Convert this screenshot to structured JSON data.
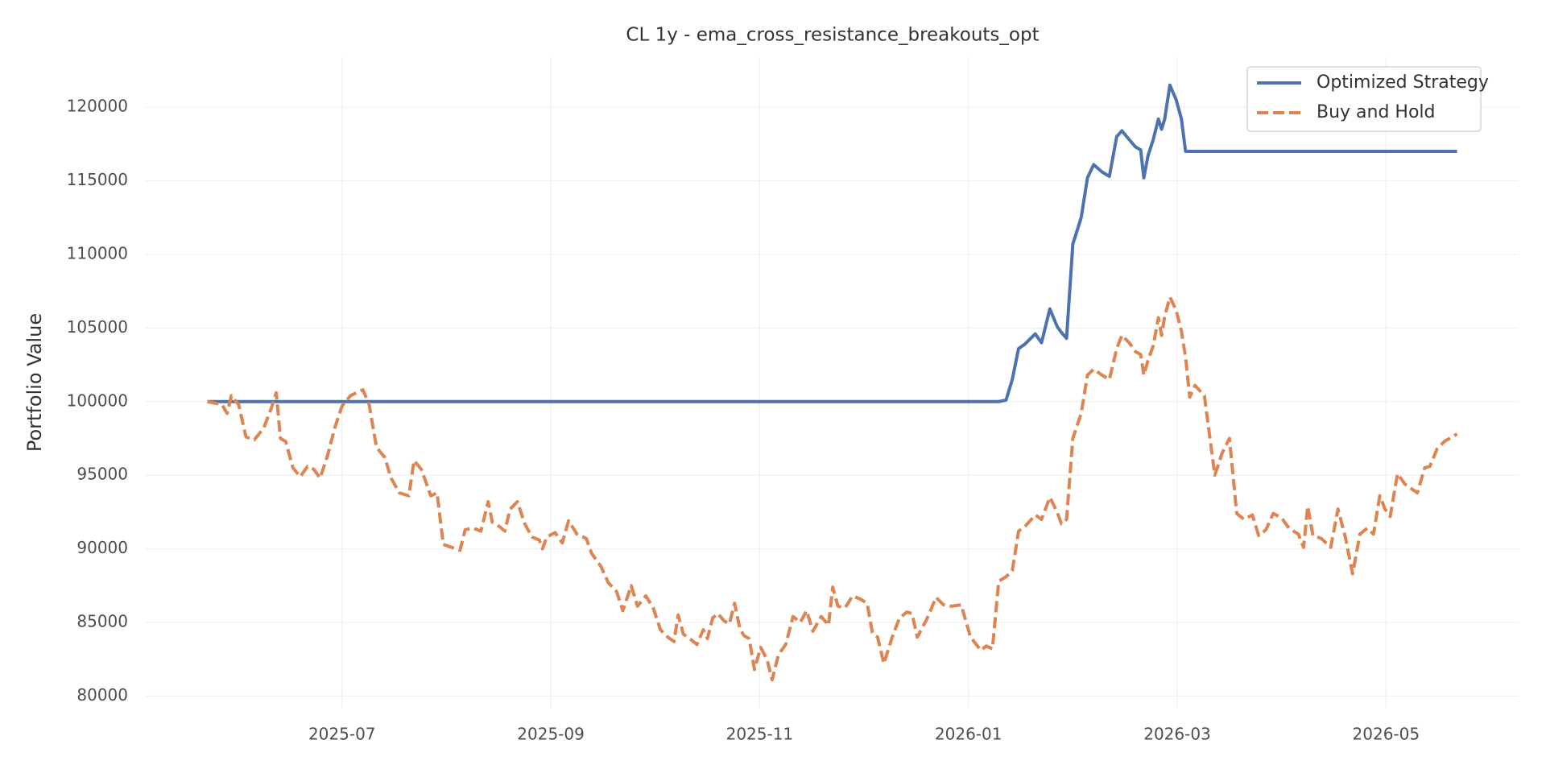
{
  "chart_data": {
    "type": "line",
    "title": "CL 1y - ema_cross_resistance_breakouts_opt",
    "y_label": "Portfolio Value",
    "x": [
      4.71,
      4.85,
      4.9,
      4.94,
      5.01,
      5.08,
      5.16,
      5.25,
      5.32,
      5.37,
      5.41,
      5.46,
      5.53,
      5.6,
      5.67,
      5.73,
      5.79,
      5.86,
      5.93,
      6.0,
      6.08,
      6.2,
      6.26,
      6.33,
      6.41,
      6.47,
      6.55,
      6.64,
      6.69,
      6.76,
      6.85,
      6.91,
      6.97,
      7.05,
      7.13,
      7.18,
      7.26,
      7.33,
      7.4,
      7.44,
      7.51,
      7.56,
      7.61,
      7.68,
      7.75,
      7.82,
      7.89,
      7.92,
      7.96,
      8.04,
      8.11,
      8.17,
      8.25,
      8.34,
      8.39,
      8.48,
      8.55,
      8.63,
      8.69,
      8.77,
      8.83,
      8.91,
      8.98,
      9.05,
      9.12,
      9.18,
      9.22,
      9.27,
      9.33,
      9.4,
      9.46,
      9.5,
      9.55,
      9.6,
      9.66,
      9.71,
      9.76,
      9.81,
      9.85,
      9.9,
      9.95,
      10.01,
      10.07,
      10.12,
      10.18,
      10.25,
      10.32,
      10.39,
      10.45,
      10.51,
      10.59,
      10.66,
      10.7,
      10.75,
      10.82,
      10.89,
      10.96,
      11.03,
      11.08,
      11.13,
      11.19,
      11.27,
      11.34,
      11.41,
      11.46,
      11.51,
      11.6,
      11.69,
      11.76,
      11.84,
      11.93,
      12.02,
      12.12,
      12.17,
      12.23,
      12.29,
      12.36,
      12.42,
      12.48,
      12.54,
      12.64,
      12.7,
      12.78,
      12.85,
      12.89,
      12.94,
      13.0,
      13.08,
      13.14,
      13.2,
      13.28,
      13.35,
      13.42,
      13.47,
      13.54,
      13.6,
      13.65,
      13.68,
      13.72,
      13.77,
      13.82,
      13.85,
      13.88,
      13.93,
      13.99,
      14.04,
      14.08,
      14.12,
      14.17,
      14.26,
      14.36,
      14.43,
      14.5,
      14.57,
      14.64,
      14.72,
      14.78,
      14.85,
      14.92,
      15.0,
      15.07,
      15.16,
      15.21,
      15.25,
      15.3,
      15.38,
      15.47,
      15.54,
      15.61,
      15.68,
      15.75,
      15.82,
      15.88,
      15.94,
      15.99,
      16.04,
      16.11,
      16.18,
      16.3,
      16.37,
      16.42,
      16.49,
      16.56,
      16.68
    ],
    "series": [
      {
        "name": "Optimized Strategy",
        "color": "#4c72b0",
        "dashed": false,
        "values": [
          100000,
          100000,
          100000,
          100000,
          100000,
          100000,
          100000,
          100000,
          100000,
          100000,
          100000,
          100000,
          100000,
          100000,
          100000,
          100000,
          100000,
          100000,
          100000,
          100000,
          100000,
          100000,
          100000,
          100000,
          100000,
          100000,
          100000,
          100000,
          100000,
          100000,
          100000,
          100000,
          100000,
          100000,
          100000,
          100000,
          100000,
          100000,
          100000,
          100000,
          100000,
          100000,
          100000,
          100000,
          100000,
          100000,
          100000,
          100000,
          100000,
          100000,
          100000,
          100000,
          100000,
          100000,
          100000,
          100000,
          100000,
          100000,
          100000,
          100000,
          100000,
          100000,
          100000,
          100000,
          100000,
          100000,
          100000,
          100000,
          100000,
          100000,
          100000,
          100000,
          100000,
          100000,
          100000,
          100000,
          100000,
          100000,
          100000,
          100000,
          100000,
          100000,
          100000,
          100000,
          100000,
          100000,
          100000,
          100000,
          100000,
          100000,
          100000,
          100000,
          100000,
          100000,
          100000,
          100000,
          100000,
          100000,
          100000,
          100000,
          100000,
          100000,
          100000,
          100000,
          100000,
          100000,
          100000,
          100000,
          100000,
          100000,
          100000,
          100000,
          100000,
          100000,
          100000,
          100000,
          100100,
          101500,
          103600,
          103900,
          104600,
          104000,
          106300,
          105100,
          104700,
          104300,
          110700,
          112500,
          115200,
          116100,
          115600,
          115300,
          118000,
          118400,
          117800,
          117300,
          117100,
          115200,
          116700,
          117800,
          119200,
          118500,
          119200,
          121500,
          120500,
          119200,
          117000,
          117000,
          117000,
          117000,
          117000,
          117000,
          117000,
          117000,
          117000,
          117000,
          117000,
          117000,
          117000,
          117000,
          117000,
          117000,
          117000,
          117000,
          117000,
          117000,
          117000,
          117000,
          117000,
          117000,
          117000,
          117000,
          117000,
          117000,
          117000,
          117000,
          117000,
          117000,
          117000,
          117000,
          117000,
          117000,
          117000,
          117000
        ]
      },
      {
        "name": "Buy and Hold",
        "color": "#dd8452",
        "dashed": true,
        "values": [
          100000,
          99800,
          99200,
          100400,
          99800,
          97600,
          97400,
          98200,
          99500,
          100600,
          97500,
          97300,
          95500,
          94900,
          95600,
          95400,
          94800,
          96300,
          98200,
          99700,
          100400,
          100800,
          99800,
          96900,
          96200,
          94800,
          93800,
          93600,
          96000,
          95400,
          93600,
          93800,
          90300,
          90100,
          89900,
          91300,
          91400,
          91200,
          93200,
          91800,
          91500,
          91200,
          92700,
          93200,
          91700,
          90800,
          90600,
          90000,
          90800,
          91100,
          90400,
          91900,
          91000,
          90700,
          89700,
          88800,
          87700,
          87100,
          85800,
          87500,
          86100,
          86800,
          86000,
          84500,
          84000,
          83700,
          85500,
          84200,
          83900,
          83500,
          84500,
          83900,
          85300,
          85600,
          85100,
          84900,
          86300,
          84600,
          84100,
          83900,
          81800,
          83300,
          82500,
          81100,
          82800,
          83500,
          85400,
          85000,
          85800,
          84400,
          85400,
          84800,
          87400,
          86100,
          86000,
          86800,
          86600,
          86300,
          84300,
          84000,
          82200,
          84000,
          85300,
          85700,
          85600,
          84000,
          85200,
          86700,
          86200,
          86100,
          86200,
          84000,
          83100,
          83400,
          83200,
          87800,
          88100,
          88500,
          91200,
          91500,
          92300,
          92000,
          93500,
          92500,
          91700,
          92000,
          97500,
          99200,
          101800,
          102200,
          101800,
          101500,
          103600,
          104500,
          104000,
          103400,
          103200,
          101800,
          102800,
          103800,
          105700,
          104500,
          105800,
          107100,
          106200,
          104800,
          103000,
          100300,
          101100,
          100400,
          95000,
          96500,
          97500,
          92400,
          92000,
          92300,
          90900,
          91300,
          92400,
          92100,
          91400,
          91000,
          90100,
          92900,
          90900,
          90700,
          90100,
          92700,
          90800,
          88300,
          91000,
          91400,
          91000,
          93600,
          92700,
          92200,
          95100,
          94400,
          93800,
          95500,
          95600,
          96800,
          97300,
          97800
        ]
      }
    ],
    "xlim": [
      4.12,
      17.27
    ],
    "xticks": [
      {
        "value": 6,
        "label": "2025-07"
      },
      {
        "value": 8,
        "label": "2025-09"
      },
      {
        "value": 10,
        "label": "2025-11"
      },
      {
        "value": 12,
        "label": "2026-01"
      },
      {
        "value": 14,
        "label": "2026-03"
      },
      {
        "value": 16,
        "label": "2026-05"
      }
    ],
    "ylim": [
      79200,
      123400
    ],
    "yticks": [
      80000,
      85000,
      90000,
      95000,
      100000,
      105000,
      110000,
      115000,
      120000
    ],
    "grid": true,
    "legend": "upper right"
  }
}
